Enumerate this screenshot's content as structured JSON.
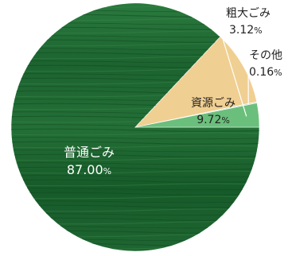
{
  "chart_data": {
    "type": "pie",
    "slices": [
      {
        "name": "普通ごみ",
        "value": 87.0,
        "label_value": "87.00",
        "color": "#1f6d33"
      },
      {
        "name": "資源ごみ",
        "value": 9.72,
        "label_value": "9.72",
        "color": "#f0cf92"
      },
      {
        "name": "その他",
        "value": 0.16,
        "label_value": "0.16",
        "color": "#c9e3c8"
      },
      {
        "name": "粗大ごみ",
        "value": 3.12,
        "label_value": "3.12",
        "color": "#6bbf7c"
      }
    ],
    "unit": "%",
    "start_angle_deg": 0,
    "direction": "clockwise"
  }
}
